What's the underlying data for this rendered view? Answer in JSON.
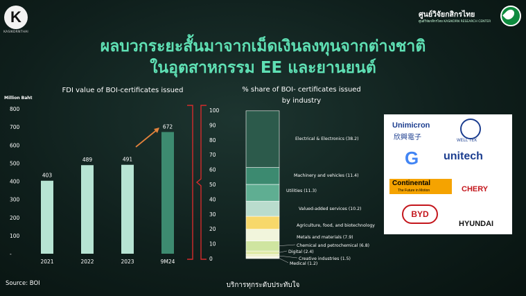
{
  "header": {
    "logo_letter": "K",
    "logo_text": "KASIKORNTHAI",
    "brand_thai": "ศูนย์วิจัยกสิกรไทย",
    "brand_sub": "ศูนย์วิจัยกสิกรไทย  KASIKORN RESEARCH CENTER"
  },
  "title_line1": "ผลบวกระยะสั้นมาจากเม็ดเงินลงทุนจากต่างชาติ",
  "title_line2": "ในอุตสาหกรรม EE และยานยนต์",
  "chart_data": [
    {
      "type": "bar",
      "title": "FDI value of BOI-certificates issued",
      "ylabel": "Million Baht",
      "categories": [
        "2021",
        "2022",
        "2023",
        "9M24"
      ],
      "values": [
        403,
        489,
        491,
        672
      ],
      "yticks": [
        "800",
        "700",
        "600",
        "500",
        "400",
        "300",
        "200",
        "100",
        "-"
      ],
      "ylim": [
        0,
        800
      ],
      "colors": [
        "#b7e4d3",
        "#b7e4d3",
        "#b7e4d3",
        "#3d8b70"
      ],
      "grid": false
    },
    {
      "type": "bar",
      "title_line1": "% share of BOI- certificates issued",
      "title_line2": "by industry",
      "yticks": [
        "100",
        "90",
        "80",
        "70",
        "60",
        "50",
        "40",
        "30",
        "20",
        "10",
        "0"
      ],
      "ylim": [
        0,
        100
      ],
      "stacked": true,
      "segments": [
        {
          "name": "Medical (1.2)",
          "value": 1.2,
          "color": "#f3f3e4"
        },
        {
          "name": "Creative industries (1.5)",
          "value": 1.5,
          "color": "#eef0c8"
        },
        {
          "name": "Digital (2.4)",
          "value": 2.4,
          "color": "#e0eaa8"
        },
        {
          "name": "Chemical and petrochemical (6.8)",
          "value": 6.8,
          "color": "#cfe5a0"
        },
        {
          "name": "Metals and materials (7.9)",
          "value": 7.9,
          "color": "#f1f5dc"
        },
        {
          "name": "Agriculture, food, and biotechnology",
          "value": 8.7,
          "color": "#f7d86a"
        },
        {
          "name": "Valued-added services (10.2)",
          "value": 10.2,
          "color": "#b9dccd"
        },
        {
          "name": "Utilities (11.3)",
          "value": 11.3,
          "color": "#5fae92"
        },
        {
          "name": "Machinery and vehicles (11.4)",
          "value": 11.4,
          "color": "#3c8a70"
        },
        {
          "name": "Electrical & Electronics (38.2)",
          "value": 38.2,
          "color": "#2c5a4b"
        }
      ]
    }
  ],
  "brands": [
    "Unimicron",
    "欣興電子",
    "WELL TEK",
    "G",
    "unitech",
    "Continental",
    "The Future in Motion",
    "CHERY",
    "BYD",
    "HYUNDAI"
  ],
  "source": "Source: BOI",
  "footer": "บริการทุกระดับประทับใจ"
}
